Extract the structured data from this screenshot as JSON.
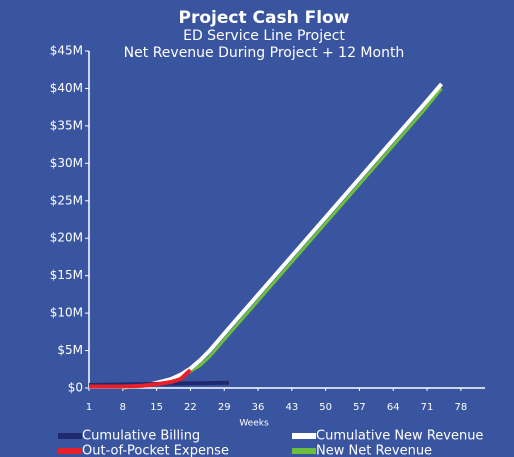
{
  "chart_data": {
    "type": "line",
    "title": "Project Cash Flow",
    "subtitle": [
      "ED Service Line Project",
      "Net Revenue During Project + 12 Month"
    ],
    "xlabel": "Weeks",
    "xlim": [
      1,
      83
    ],
    "xticks": [
      1,
      8,
      15,
      22,
      29,
      36,
      43,
      50,
      57,
      64,
      71,
      78
    ],
    "ylim": [
      0,
      45
    ],
    "yticks": [
      {
        "value": 0,
        "label": "$0"
      },
      {
        "value": 5,
        "label": "$5M"
      },
      {
        "value": 10,
        "label": "$10M"
      },
      {
        "value": 15,
        "label": "$15M"
      },
      {
        "value": 20,
        "label": "$20M"
      },
      {
        "value": 25,
        "label": "$25M"
      },
      {
        "value": 30,
        "label": "$30M"
      },
      {
        "value": 35,
        "label": "$35M"
      },
      {
        "value": 40,
        "label": "$40M"
      },
      {
        "value": 45,
        "label": "$45M"
      }
    ],
    "series": [
      {
        "name": "Cumulative Billing",
        "color": "#1f2a6e",
        "x": [
          1,
          10,
          20,
          30
        ],
        "values": [
          0.4,
          0.5,
          0.6,
          0.7
        ]
      },
      {
        "name": "Cumulative New Revenue",
        "color": "#ffffff",
        "x": [
          8,
          10,
          13,
          15,
          18,
          20,
          22,
          24,
          26,
          30,
          40,
          50,
          60,
          70,
          74
        ],
        "values": [
          0.1,
          0.2,
          0.4,
          0.7,
          1.2,
          1.8,
          2.6,
          3.7,
          5.0,
          8.0,
          15.4,
          22.8,
          30.2,
          37.6,
          40.6
        ]
      },
      {
        "name": "Out-of-Pocket Expense",
        "color": "#e8202a",
        "x": [
          1,
          5,
          8,
          12,
          15,
          18,
          20,
          21,
          22
        ],
        "values": [
          0.2,
          0.2,
          0.2,
          0.3,
          0.5,
          0.8,
          1.2,
          1.8,
          2.4
        ]
      },
      {
        "name": "New Net Revenue",
        "color": "#6cbf3c",
        "x": [
          8,
          10,
          13,
          15,
          18,
          20,
          22,
          24,
          26,
          30,
          40,
          50,
          60,
          70,
          74
        ],
        "values": [
          0,
          0.1,
          0.3,
          0.5,
          1.0,
          1.5,
          2.2,
          3.0,
          4.2,
          7.2,
          14.6,
          22.0,
          29.4,
          36.8,
          40.0
        ]
      }
    ]
  }
}
